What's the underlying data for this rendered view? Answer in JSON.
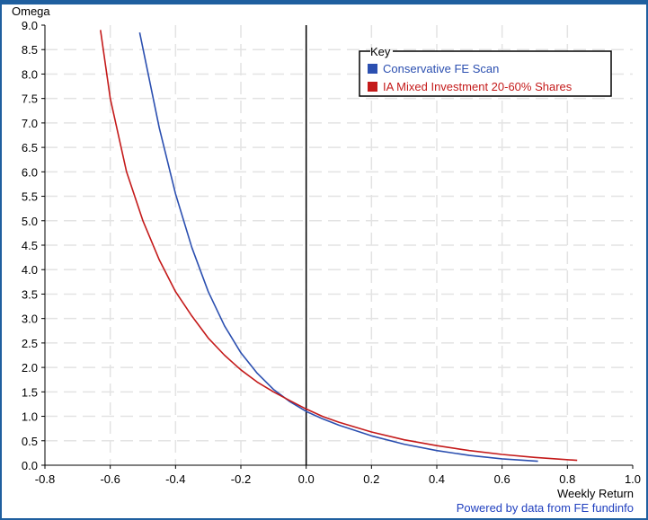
{
  "chart_data": {
    "type": "line",
    "xlabel": "Weekly Return",
    "ylabel": "Omega",
    "xlim": [
      -0.8,
      1.0
    ],
    "ylim": [
      0.0,
      9.0
    ],
    "x_ticks": [
      "-0.8",
      "-0.6",
      "-0.4",
      "-0.2",
      "0.0",
      "0.2",
      "0.4",
      "0.6",
      "0.8",
      "1.0"
    ],
    "y_ticks": [
      "0.0",
      "0.5",
      "1.0",
      "1.5",
      "2.0",
      "2.5",
      "3.0",
      "3.5",
      "4.0",
      "4.5",
      "5.0",
      "5.5",
      "6.0",
      "6.5",
      "7.0",
      "7.5",
      "8.0",
      "8.5",
      "9.0"
    ],
    "grid": true,
    "legend_title": "Key",
    "legend_position": "top-right",
    "series": [
      {
        "name": "Conservative FE Scan",
        "color": "#2b4fb0",
        "x": [
          -0.51,
          -0.45,
          -0.4,
          -0.35,
          -0.3,
          -0.25,
          -0.2,
          -0.15,
          -0.1,
          -0.05,
          0.0,
          0.05,
          0.1,
          0.2,
          0.3,
          0.4,
          0.5,
          0.6,
          0.71
        ],
        "y": [
          8.85,
          6.9,
          5.55,
          4.45,
          3.55,
          2.85,
          2.3,
          1.88,
          1.55,
          1.3,
          1.1,
          0.95,
          0.82,
          0.6,
          0.43,
          0.3,
          0.2,
          0.13,
          0.08
        ]
      },
      {
        "name": "IA Mixed Investment 20-60% Shares",
        "color": "#c41a1a",
        "x": [
          -0.63,
          -0.6,
          -0.55,
          -0.5,
          -0.45,
          -0.4,
          -0.35,
          -0.3,
          -0.25,
          -0.2,
          -0.15,
          -0.1,
          -0.05,
          0.0,
          0.05,
          0.1,
          0.2,
          0.3,
          0.4,
          0.5,
          0.6,
          0.7,
          0.83
        ],
        "y": [
          8.9,
          7.5,
          6.0,
          5.0,
          4.2,
          3.55,
          3.05,
          2.6,
          2.25,
          1.95,
          1.7,
          1.5,
          1.32,
          1.15,
          1.0,
          0.88,
          0.68,
          0.52,
          0.4,
          0.3,
          0.22,
          0.16,
          0.1
        ]
      }
    ]
  },
  "credit": "Powered by data from FE fundinfo"
}
